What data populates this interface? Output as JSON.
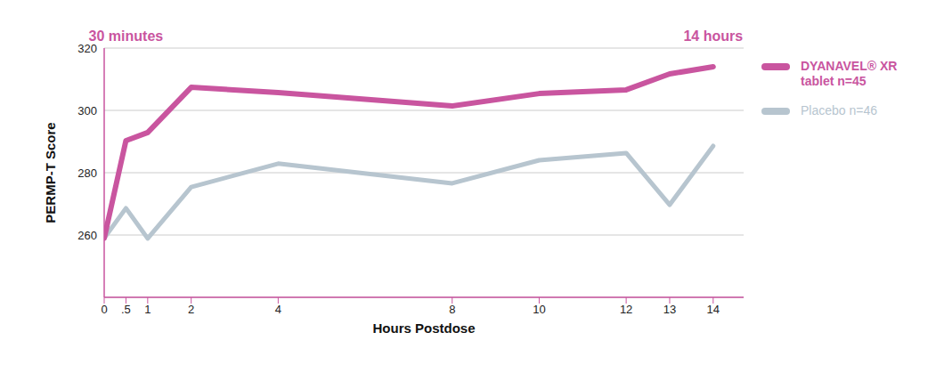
{
  "chart_data": {
    "type": "line",
    "x_label": "Hours Postdose",
    "y_label": "PERMP-T Score",
    "x": [
      0,
      0.5,
      1,
      2,
      4,
      8,
      10,
      12,
      13,
      14
    ],
    "series": [
      {
        "name": "DYANAVEL® XR tablet n=45",
        "color": "#c9559f",
        "values": [
          259,
          290.3,
          292.9,
          307.4,
          305.7,
          301.4,
          305.4,
          306.6,
          311.7,
          314
        ]
      },
      {
        "name": "Placebo n=46",
        "color": "#b7c5cf",
        "values": [
          259,
          268.6,
          258.9,
          275.4,
          282.9,
          276.6,
          284,
          286.3,
          269.7,
          288.6
        ]
      }
    ],
    "xlim": [
      0,
      14.7
    ],
    "xticks": [
      0,
      {
        "value": 0.5,
        "label": ".5"
      },
      1,
      2,
      4,
      8,
      10,
      12,
      13,
      14
    ],
    "ylim": [
      240,
      320
    ],
    "yticks": [
      260,
      280,
      300,
      320
    ],
    "grid": true,
    "legend": "right",
    "annotations": [
      {
        "text": "30 minutes",
        "x": 0.5
      },
      {
        "text": "14 hours",
        "x": 14
      }
    ]
  }
}
